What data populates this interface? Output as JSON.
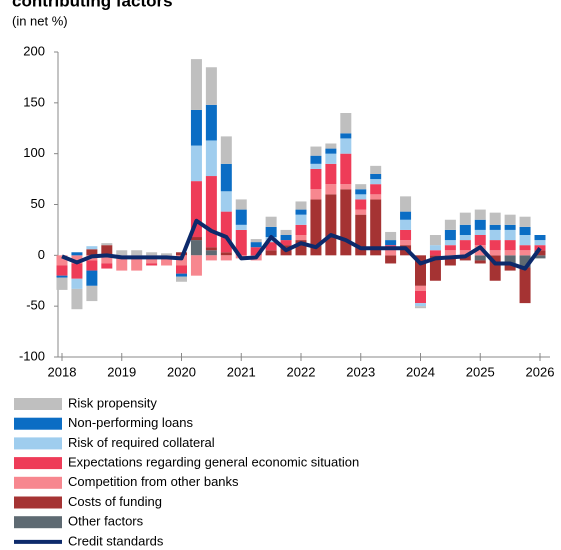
{
  "chart_data": {
    "type": "stacked-bar-line",
    "title": "contributing factors",
    "subtitle": "(in net %)",
    "x": [
      2018,
      2018.25,
      2018.5,
      2018.75,
      2019,
      2019.25,
      2019.5,
      2019.75,
      2020,
      2020.25,
      2020.5,
      2020.75,
      2021,
      2021.25,
      2021.5,
      2021.75,
      2022,
      2022.25,
      2022.5,
      2022.75,
      2023,
      2023.25,
      2023.5,
      2023.75,
      2024,
      2024.25,
      2024.5,
      2024.75,
      2025,
      2025.25,
      2025.5,
      2025.75,
      2026
    ],
    "xlim": [
      2018,
      2026
    ],
    "xticks": [
      2018,
      2019,
      2020,
      2021,
      2022,
      2023,
      2024,
      2025,
      2026
    ],
    "ylim": [
      -100,
      200
    ],
    "yticks": [
      -100,
      -50,
      0,
      50,
      100,
      150,
      200
    ],
    "series": [
      {
        "name": "Risk propensity",
        "color": "#bfbfbf",
        "values": [
          -12,
          -20,
          -15,
          2,
          5,
          5,
          3,
          2,
          -5,
          50,
          37,
          27,
          10,
          3,
          10,
          5,
          8,
          9,
          5,
          20,
          5,
          8,
          8,
          15,
          -2,
          10,
          10,
          12,
          10,
          12,
          10,
          10,
          0
        ]
      },
      {
        "name": "Non-performing loans",
        "color": "#0b6dc4",
        "values": [
          -2,
          3,
          -15,
          0,
          0,
          0,
          0,
          0,
          -3,
          35,
          35,
          27,
          15,
          5,
          10,
          5,
          5,
          8,
          5,
          5,
          5,
          5,
          5,
          8,
          0,
          0,
          10,
          10,
          10,
          5,
          5,
          8,
          5
        ]
      },
      {
        "name": "Risk of required collateral",
        "color": "#9fcdee",
        "values": [
          0,
          -10,
          3,
          0,
          0,
          0,
          0,
          0,
          0,
          35,
          35,
          20,
          5,
          0,
          5,
          0,
          10,
          5,
          10,
          15,
          5,
          5,
          0,
          10,
          -3,
          5,
          5,
          5,
          5,
          10,
          10,
          10,
          5
        ]
      },
      {
        "name": "Expectations regarding general economic situation",
        "color": "#ee3c58",
        "values": [
          -10,
          -15,
          -10,
          -5,
          0,
          0,
          -2,
          0,
          -8,
          55,
          70,
          40,
          25,
          8,
          8,
          5,
          10,
          20,
          20,
          30,
          10,
          10,
          5,
          10,
          -12,
          5,
          5,
          10,
          10,
          10,
          10,
          5,
          5
        ]
      },
      {
        "name": "Competition from other banks",
        "color": "#f7878f",
        "values": [
          -10,
          -8,
          -5,
          -8,
          -15,
          -15,
          -8,
          -10,
          -10,
          -20,
          -5,
          -5,
          -3,
          -5,
          0,
          0,
          5,
          10,
          10,
          5,
          5,
          5,
          5,
          5,
          -5,
          0,
          5,
          5,
          10,
          5,
          5,
          5,
          0
        ]
      },
      {
        "name": "Costs of funding",
        "color": "#a53333",
        "values": [
          0,
          0,
          6,
          10,
          0,
          0,
          0,
          0,
          3,
          3,
          3,
          3,
          0,
          0,
          5,
          10,
          15,
          55,
          60,
          65,
          40,
          55,
          -8,
          10,
          -30,
          -25,
          -10,
          -5,
          -3,
          -25,
          -5,
          -35,
          5
        ]
      },
      {
        "name": "Other factors",
        "color": "#5e6a72",
        "values": [
          0,
          0,
          0,
          0,
          0,
          0,
          0,
          0,
          0,
          15,
          5,
          0,
          0,
          0,
          0,
          0,
          0,
          0,
          0,
          0,
          0,
          0,
          0,
          0,
          0,
          0,
          0,
          0,
          -5,
          0,
          -10,
          -12,
          -3
        ]
      },
      {
        "name": "Credit standards",
        "color": "#0d2a6b",
        "type": "line",
        "values": [
          -1,
          -7,
          -1,
          0,
          -2,
          -2,
          -2,
          -2,
          -3,
          34,
          24,
          18,
          -3,
          -2,
          18,
          5,
          12,
          8,
          20,
          15,
          7,
          7,
          7,
          7,
          -8,
          -3,
          -2,
          -1,
          8,
          -8,
          -8,
          -13,
          7
        ]
      }
    ]
  }
}
